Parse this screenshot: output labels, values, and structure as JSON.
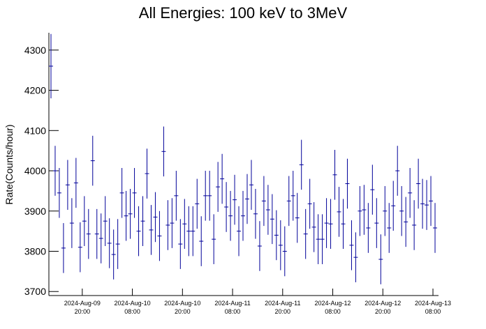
{
  "chart_data": {
    "type": "errorbar",
    "title": "All Energies:  100 keV to 3MeV",
    "y_label": "Rate(Counts/hour)",
    "x": [
      "2024-08-09 12:30",
      "2024-08-09 13:30",
      "2024-08-09 14:30",
      "2024-08-09 15:30",
      "2024-08-09 16:30",
      "2024-08-09 17:30",
      "2024-08-09 18:30",
      "2024-08-09 19:30",
      "2024-08-09 20:30",
      "2024-08-09 21:30",
      "2024-08-09 22:30",
      "2024-08-09 23:30",
      "2024-08-10 00:30",
      "2024-08-10 01:30",
      "2024-08-10 02:30",
      "2024-08-10 03:30",
      "2024-08-10 04:30",
      "2024-08-10 05:30",
      "2024-08-10 06:30",
      "2024-08-10 07:30",
      "2024-08-10 08:30",
      "2024-08-10 09:30",
      "2024-08-10 10:30",
      "2024-08-10 11:30",
      "2024-08-10 12:30",
      "2024-08-10 13:30",
      "2024-08-10 14:30",
      "2024-08-10 15:30",
      "2024-08-10 16:30",
      "2024-08-10 17:30",
      "2024-08-10 18:30",
      "2024-08-10 19:30",
      "2024-08-10 20:30",
      "2024-08-10 21:30",
      "2024-08-10 22:30",
      "2024-08-10 23:30",
      "2024-08-11 00:30",
      "2024-08-11 01:30",
      "2024-08-11 02:30",
      "2024-08-11 03:30",
      "2024-08-11 04:30",
      "2024-08-11 05:30",
      "2024-08-11 06:30",
      "2024-08-11 07:30",
      "2024-08-11 08:30",
      "2024-08-11 09:30",
      "2024-08-11 10:30",
      "2024-08-11 11:30",
      "2024-08-11 12:30",
      "2024-08-11 13:30",
      "2024-08-11 14:30",
      "2024-08-11 15:30",
      "2024-08-11 16:30",
      "2024-08-11 17:30",
      "2024-08-11 18:30",
      "2024-08-11 19:30",
      "2024-08-11 20:30",
      "2024-08-11 21:30",
      "2024-08-11 22:30",
      "2024-08-11 23:30",
      "2024-08-12 00:30",
      "2024-08-12 01:30",
      "2024-08-12 02:30",
      "2024-08-12 03:30",
      "2024-08-12 04:30",
      "2024-08-12 05:30",
      "2024-08-12 06:30",
      "2024-08-12 07:30",
      "2024-08-12 08:30",
      "2024-08-12 09:30",
      "2024-08-12 10:30",
      "2024-08-12 11:30",
      "2024-08-12 12:30",
      "2024-08-12 13:30",
      "2024-08-12 14:30",
      "2024-08-12 15:30",
      "2024-08-12 16:30",
      "2024-08-12 17:30",
      "2024-08-12 18:30",
      "2024-08-12 19:30",
      "2024-08-12 20:30",
      "2024-08-12 21:30",
      "2024-08-12 22:30",
      "2024-08-12 23:30",
      "2024-08-13 00:30",
      "2024-08-13 01:30",
      "2024-08-13 02:30",
      "2024-08-13 03:30",
      "2024-08-13 04:30",
      "2024-08-13 05:30",
      "2024-08-13 06:30",
      "2024-08-13 07:30",
      "2024-08-13 08:30"
    ],
    "values": [
      4260,
      4000,
      3945,
      3808,
      3965,
      3870,
      3970,
      3810,
      3875,
      3843,
      4025,
      3843,
      3832,
      3875,
      3820,
      3792,
      3818,
      3945,
      3888,
      3893,
      3945,
      3850,
      3875,
      3993,
      3853,
      3885,
      3838,
      4048,
      3865,
      3870,
      3938,
      3818,
      3868,
      3850,
      3850,
      3918,
      3825,
      3938,
      3938,
      3830,
      3960,
      3980,
      3910,
      3888,
      3928,
      3850,
      3888,
      3930,
      3965,
      3893,
      3813,
      3925,
      3903,
      3880,
      3840,
      3815,
      3800,
      3925,
      3938,
      3883,
      4015,
      3843,
      3918,
      3860,
      3830,
      3830,
      3870,
      3868,
      3990,
      3898,
      3868,
      3968,
      3815,
      3785,
      3900,
      3903,
      3858,
      3953,
      3870,
      3780,
      3900,
      3858,
      3913,
      4000,
      3900,
      3873,
      3945,
      3865,
      3968,
      3918,
      3915,
      3925,
      3858
    ],
    "errors": [
      80,
      62,
      62,
      62,
      62,
      62,
      62,
      62,
      62,
      62,
      62,
      62,
      62,
      62,
      62,
      62,
      62,
      62,
      62,
      62,
      62,
      62,
      62,
      62,
      62,
      62,
      62,
      62,
      62,
      62,
      62,
      62,
      62,
      62,
      62,
      62,
      62,
      62,
      62,
      62,
      62,
      62,
      62,
      62,
      62,
      62,
      62,
      62,
      62,
      62,
      62,
      62,
      62,
      62,
      62,
      62,
      62,
      62,
      62,
      62,
      62,
      62,
      62,
      62,
      62,
      62,
      62,
      62,
      62,
      62,
      62,
      62,
      62,
      62,
      62,
      62,
      62,
      62,
      62,
      62,
      62,
      62,
      62,
      62,
      62,
      62,
      62,
      62,
      62,
      62,
      62,
      62,
      62
    ],
    "color": "#000099",
    "bin_hours": 1,
    "xlim": [
      "2024-08-09 12:00",
      "2024-08-13 09:20"
    ],
    "xticks": [
      {
        "value": "2024-08-09 20:00",
        "label": [
          "2024-Aug-09",
          "20:00"
        ]
      },
      {
        "value": "2024-08-10 08:00",
        "label": [
          "2024-Aug-10",
          "08:00"
        ]
      },
      {
        "value": "2024-08-10 20:00",
        "label": [
          "2024-Aug-10",
          "20:00"
        ]
      },
      {
        "value": "2024-08-11 08:00",
        "label": [
          "2024-Aug-11",
          "08:00"
        ]
      },
      {
        "value": "2024-08-11 20:00",
        "label": [
          "2024-Aug-11",
          "20:00"
        ]
      },
      {
        "value": "2024-08-12 08:00",
        "label": [
          "2024-Aug-12",
          "08:00"
        ]
      },
      {
        "value": "2024-08-12 20:00",
        "label": [
          "2024-Aug-12",
          "20:00"
        ]
      },
      {
        "value": "2024-08-13 08:00",
        "label": [
          "2024-Aug-13",
          "08:00"
        ]
      }
    ],
    "ylim": [
      3690,
      4343
    ],
    "yticks": [
      3700,
      3800,
      3900,
      4000,
      4100,
      4200,
      4300
    ]
  }
}
